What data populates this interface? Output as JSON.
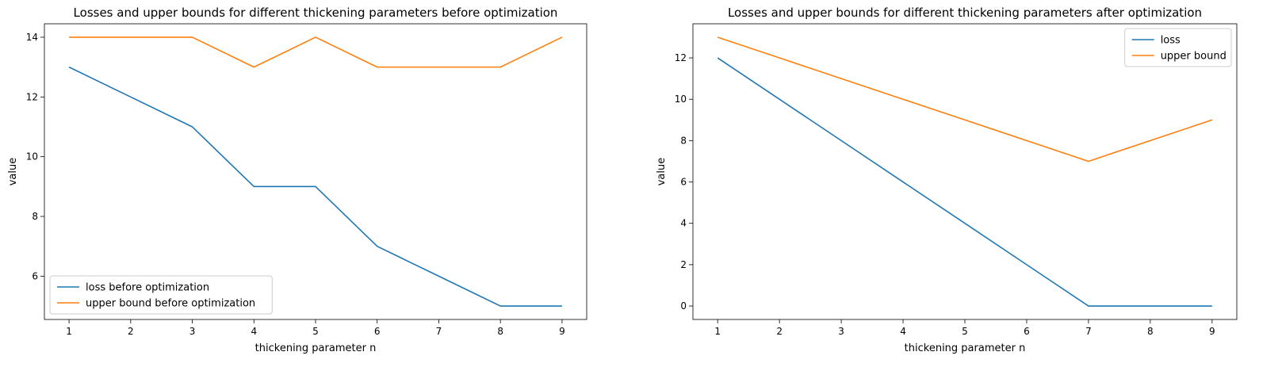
{
  "chart_data": [
    {
      "type": "line",
      "title": "Losses and upper bounds for different thickening parameters before optimization",
      "xlabel": "thickening parameter n",
      "ylabel": "value",
      "x": [
        1,
        2,
        3,
        4,
        5,
        6,
        7,
        8,
        9
      ],
      "xlim": [
        0.6,
        9.4
      ],
      "ylim": [
        4.55,
        14.45
      ],
      "yticks": [
        6,
        8,
        10,
        12,
        14
      ],
      "grid": false,
      "legend_position": "lower-left",
      "series": [
        {
          "name": "loss before optimization",
          "color": "#1f77b4",
          "values": [
            13,
            12,
            11,
            9,
            9,
            7,
            6,
            5,
            5
          ]
        },
        {
          "name": "upper bound before optimization",
          "color": "#ff7f0e",
          "values": [
            14,
            14,
            14,
            13,
            14,
            13,
            13,
            13,
            14
          ]
        }
      ]
    },
    {
      "type": "line",
      "title": "Losses and upper bounds for different thickening parameters after optimization",
      "xlabel": "thickening parameter n",
      "ylabel": "value",
      "x": [
        1,
        2,
        3,
        4,
        5,
        6,
        7,
        8,
        9
      ],
      "xlim": [
        0.6,
        9.4
      ],
      "ylim": [
        -0.65,
        13.65
      ],
      "yticks": [
        0,
        2,
        4,
        6,
        8,
        10,
        12
      ],
      "grid": false,
      "legend_position": "upper-right",
      "series": [
        {
          "name": "loss",
          "color": "#1f77b4",
          "values": [
            12,
            10,
            8,
            6,
            4,
            2,
            0,
            0,
            0
          ]
        },
        {
          "name": "upper bound",
          "color": "#ff7f0e",
          "values": [
            13,
            12,
            11,
            10,
            9,
            8,
            7,
            8,
            9
          ]
        }
      ]
    }
  ]
}
